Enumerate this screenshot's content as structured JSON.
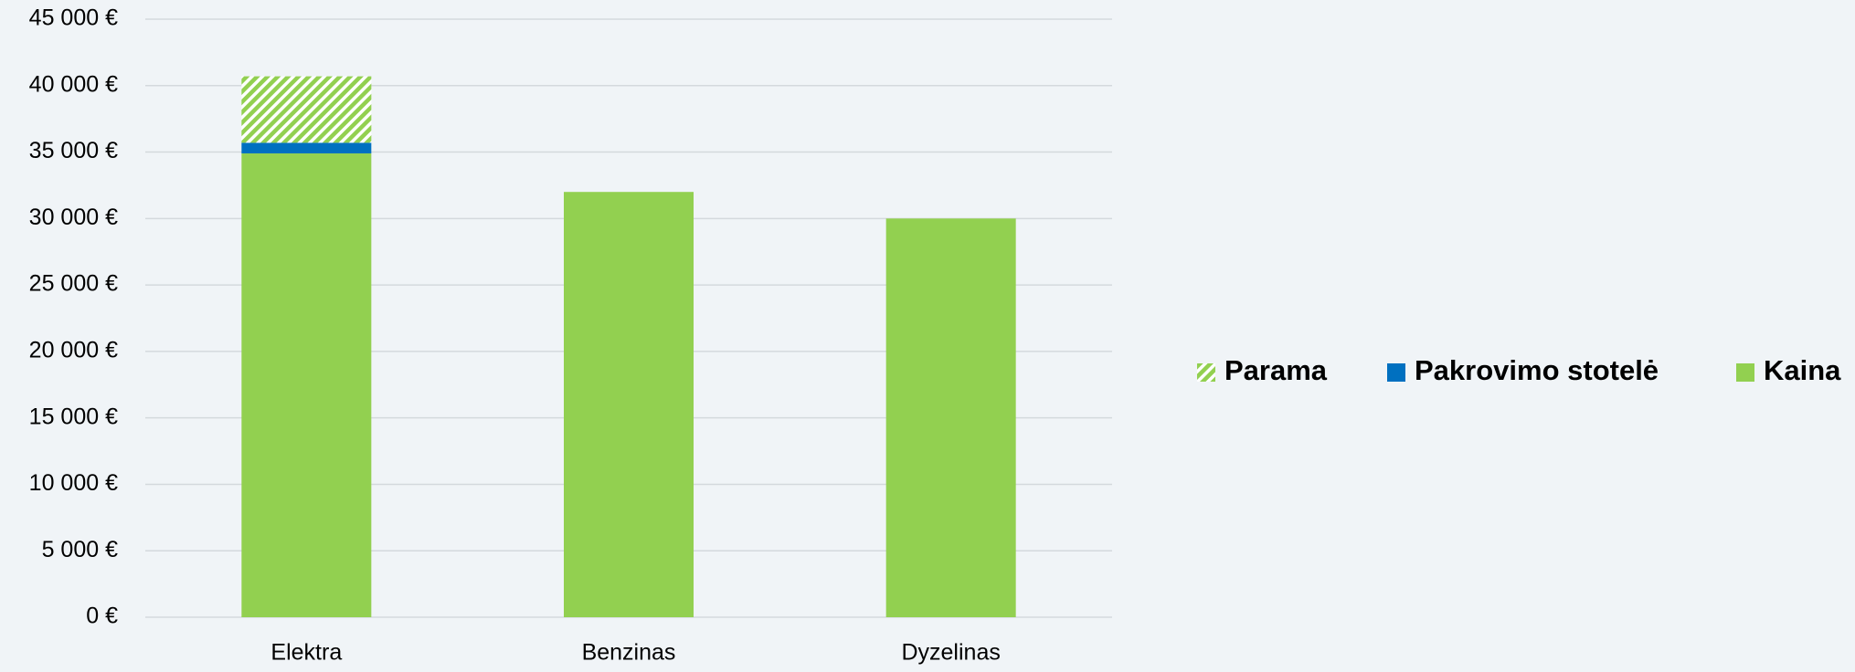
{
  "chart_data": {
    "type": "stacked_bar",
    "categories": [
      "Elektra",
      "Benzinas",
      "Dyzelinas"
    ],
    "series": [
      {
        "name": "Kaina",
        "color": "#92d050",
        "values": [
          34900,
          32000,
          30000
        ]
      },
      {
        "name": "Pakrovimo stotelė",
        "color": "#0070c0",
        "values": [
          800,
          0,
          0
        ]
      },
      {
        "name": "Parama",
        "color": "#92d050",
        "hatch": true,
        "values": [
          5000,
          0,
          0
        ]
      }
    ],
    "ylim": [
      0,
      45000
    ],
    "yticks": [
      {
        "value": 0,
        "label": "0 €"
      },
      {
        "value": 5000,
        "label": "5 000 €"
      },
      {
        "value": 10000,
        "label": "10 000 €"
      },
      {
        "value": 15000,
        "label": "15 000 €"
      },
      {
        "value": 20000,
        "label": "20 000 €"
      },
      {
        "value": 25000,
        "label": "25 000 €"
      },
      {
        "value": 30000,
        "label": "30 000 €"
      },
      {
        "value": 35000,
        "label": "35 000 €"
      },
      {
        "value": 40000,
        "label": "40 000 €"
      },
      {
        "value": 45000,
        "label": "45 000 €"
      }
    ],
    "grid": true,
    "legend": "right"
  }
}
